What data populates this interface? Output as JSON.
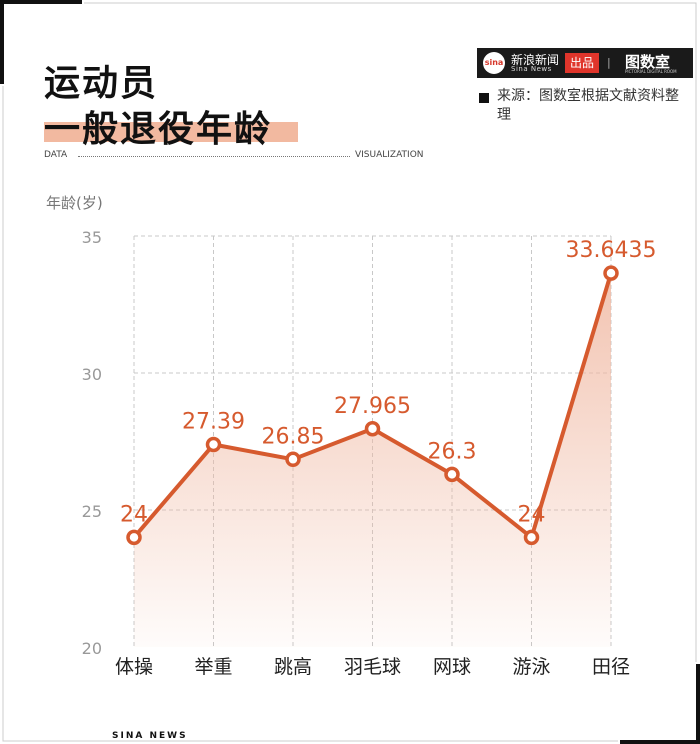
{
  "header": {
    "title_line1": "运动员",
    "title_line2": "一般退役年龄",
    "source": "来源：图数室根据文献资料整理",
    "brand": {
      "name": "新浪新闻",
      "sub": "Sina News",
      "tag": "出品",
      "sep": "|",
      "studio": "图数室",
      "studio_sub": "PICTORIAL DIGITAL ROOM",
      "logo": "sina"
    },
    "data_label": "DATA",
    "viz_label": "VISUALIZATION"
  },
  "footer": {
    "text": "SINA NEWS"
  },
  "colors": {
    "line": "#d65a2e",
    "fill": "#f0b9a3",
    "accent": "#e0352b"
  },
  "chart_data": {
    "type": "area",
    "ylabel": "年龄(岁)",
    "categories": [
      "体操",
      "举重",
      "跳高",
      "羽毛球",
      "网球",
      "游泳",
      "田径"
    ],
    "values": [
      24,
      27.39,
      26.85,
      27.965,
      26.3,
      24,
      33.6435
    ],
    "value_labels": [
      "24",
      "27.39",
      "26.85",
      "27.965",
      "26.3",
      "24",
      "33.6435"
    ],
    "ylim": [
      20,
      35
    ],
    "yticks": [
      20,
      25,
      30,
      35
    ],
    "grid": true
  }
}
